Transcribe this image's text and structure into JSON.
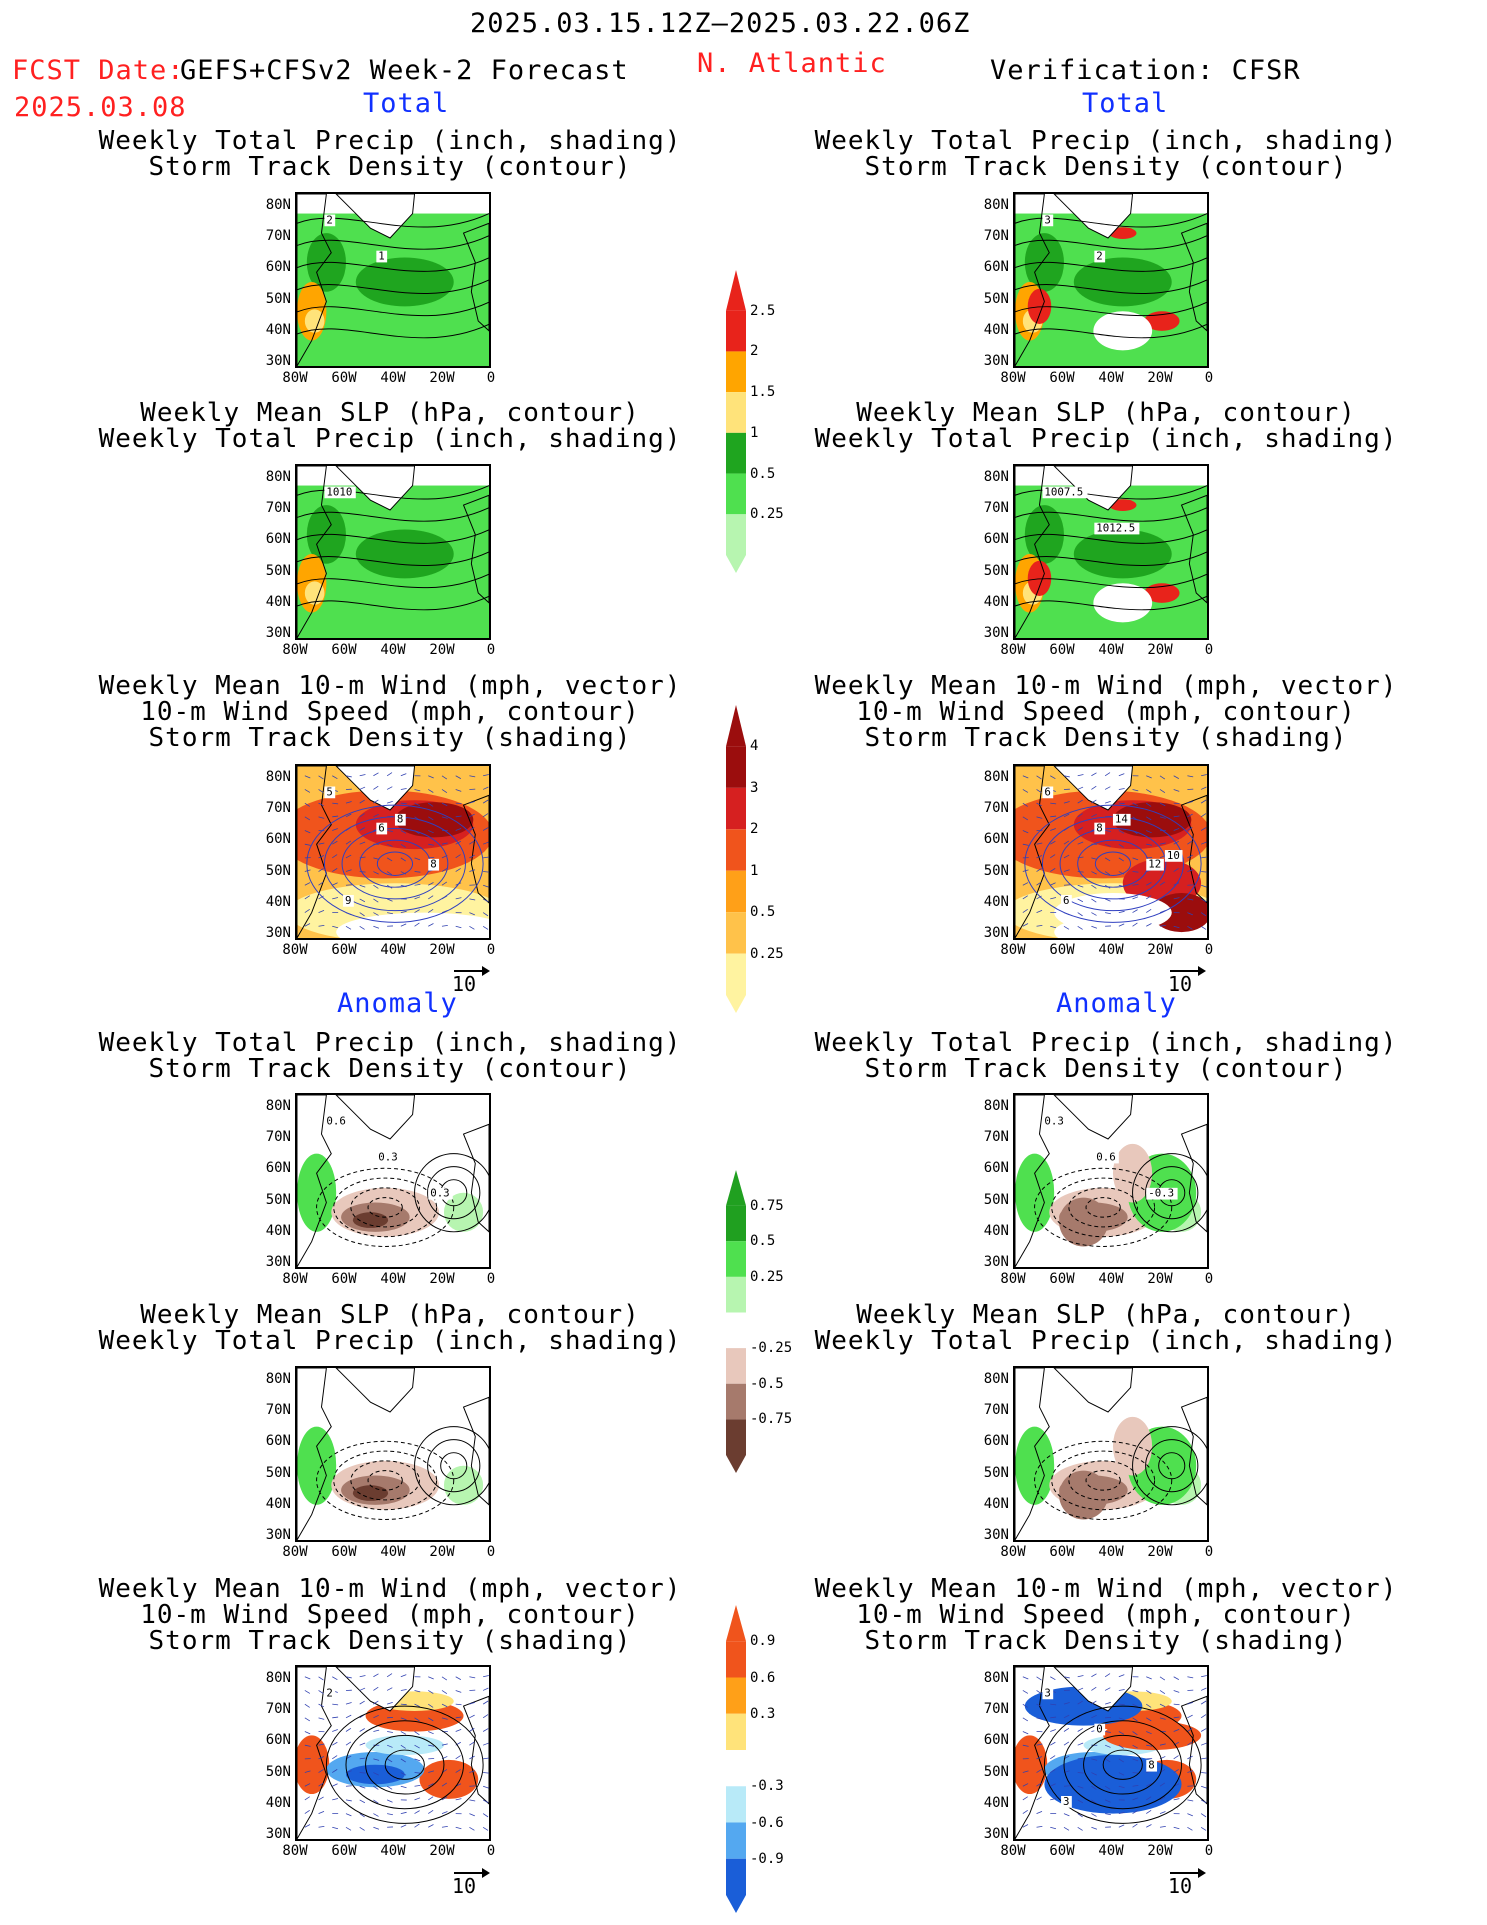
{
  "header": {
    "period": "2025.03.15.12Z–2025.03.22.06Z",
    "fcst_label": "FCST Date:",
    "fcst_model": "GEFS+CFSv2 Week-2 Forecast",
    "fcst_date": "2025.03.08",
    "region": "N. Atlantic",
    "verification": "Verification: CFSR"
  },
  "sections": {
    "total": "Total",
    "anomaly": "Anomaly"
  },
  "panel_titles": {
    "precip_track": [
      "Weekly Total Precip (inch, shading)",
      "Storm Track Density (contour)"
    ],
    "slp_precip": [
      "Weekly Mean SLP (hPa, contour)",
      "Weekly Total Precip (inch, shading)"
    ],
    "wind_track": [
      "Weekly Mean 10-m Wind (mph, vector)",
      "10-m Wind Speed (mph, contour)",
      "Storm Track Density (shading)"
    ]
  },
  "axes": {
    "lat_labels": [
      "80N",
      "70N",
      "60N",
      "50N",
      "40N",
      "30N"
    ],
    "lon_labels": [
      "80W",
      "60W",
      "40W",
      "20W",
      "0"
    ]
  },
  "vector_ref": "10",
  "colorbars": [
    {
      "name": "total-precip",
      "labels": [
        "2.5",
        "2",
        "1.5",
        "1",
        "0.5",
        "0.25"
      ],
      "colors": [
        "#e8231b",
        "#ffa500",
        "#ffe37a",
        "#1fa51f",
        "#4fe04f",
        "#b7f5b0"
      ]
    },
    {
      "name": "total-track-density",
      "labels": [
        "4",
        "3",
        "2",
        "1",
        "0.5",
        "0.25"
      ],
      "colors": [
        "#9b0d0d",
        "#d62020",
        "#f0541c",
        "#ffa018",
        "#ffc24a",
        "#fff3a0"
      ]
    },
    {
      "name": "anom-precip",
      "labels": [
        "0.75",
        "0.5",
        "0.25",
        "-0.25",
        "-0.5",
        "-0.75"
      ],
      "colors": [
        "#20a020",
        "#4fe04f",
        "#b7f5b0",
        "#ffffff",
        "#e8c8bc",
        "#a67a6c",
        "#6b3d30"
      ]
    },
    {
      "name": "anom-track-density",
      "labels": [
        "0.9",
        "0.6",
        "0.3",
        "-0.3",
        "-0.6",
        "-0.9"
      ],
      "colors": [
        "#f0541c",
        "#ffa018",
        "#ffe37a",
        "#ffffff",
        "#b8eaf8",
        "#54a8f0",
        "#1a5ed8"
      ]
    }
  ],
  "contour_labels": {
    "fc_total_track": [
      "2",
      "1"
    ],
    "ver_total_track": [
      "3",
      "2"
    ],
    "fc_total_slp": [
      "1010"
    ],
    "ver_total_slp": [
      "1007.5",
      "1012.5"
    ],
    "fc_total_wind": [
      "5",
      "6",
      "8",
      "9",
      "8"
    ],
    "ver_total_wind": [
      "6",
      "8",
      "12",
      "6",
      "14",
      "10"
    ],
    "fc_anom_track": [
      "0.6",
      "0.3",
      "0.3"
    ],
    "ver_anom_track": [
      "0.3",
      "0.6",
      "-0.3"
    ],
    "fc_anom_wind": [
      "2"
    ],
    "ver_anom_wind": [
      "3",
      "0",
      "8",
      "3"
    ]
  }
}
